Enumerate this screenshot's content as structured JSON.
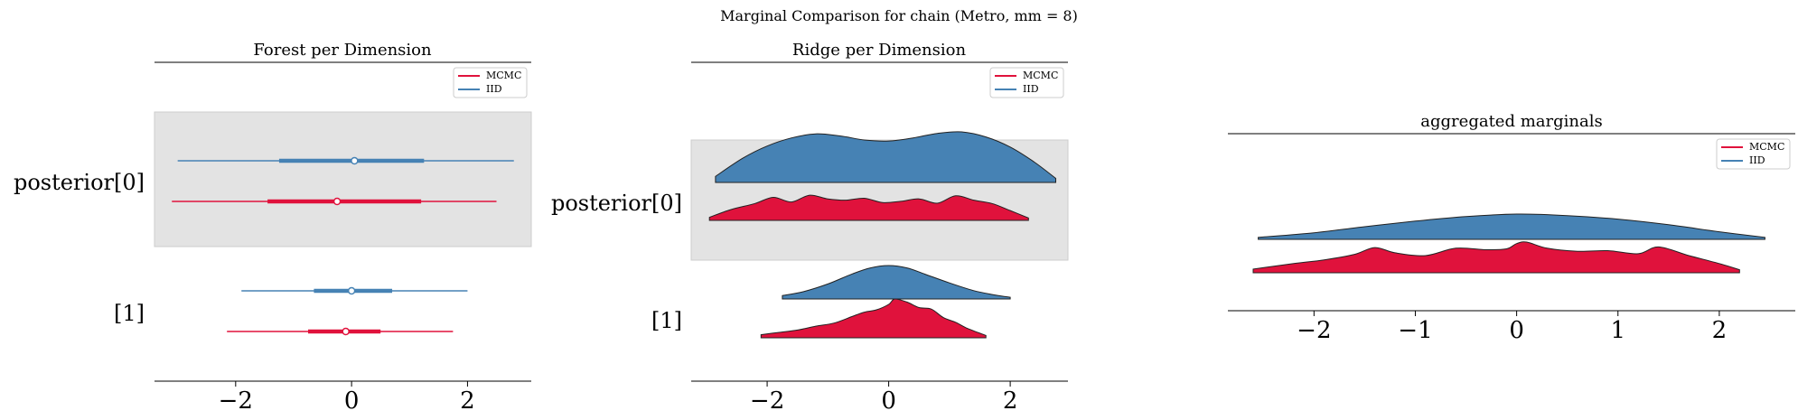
{
  "figure": {
    "suptitle": "Marginal Comparison for chain (Metro, mm = 8)"
  },
  "colors": {
    "mcmc": "#e0123c",
    "iid": "#4682b4",
    "shade": "#e3e3e3",
    "edge": "#222222"
  },
  "legend": {
    "entries": [
      "MCMC",
      "IID"
    ]
  },
  "chart_data": [
    {
      "type": "forest",
      "title": "Forest per Dimension",
      "xlim": [
        -3.4,
        3.1
      ],
      "xticks": [
        -2,
        0,
        2
      ],
      "tick_labels": [
        "−2",
        "0",
        "2"
      ],
      "legend_position": "top-right",
      "row_labels": [
        "posterior[0]",
        "[1]"
      ],
      "series": [
        {
          "name": "IID",
          "color_key": "iid",
          "rows": [
            {
              "row": 0,
              "hdi": [
                -3.0,
                2.8
              ],
              "iqr": [
                -1.25,
                1.25
              ],
              "median": 0.05
            },
            {
              "row": 1,
              "hdi": [
                -1.9,
                2.0
              ],
              "iqr": [
                -0.65,
                0.7
              ],
              "median": 0.0
            }
          ]
        },
        {
          "name": "MCMC",
          "color_key": "mcmc",
          "rows": [
            {
              "row": 0,
              "hdi": [
                -3.1,
                2.5
              ],
              "iqr": [
                -1.45,
                1.2
              ],
              "median": -0.25
            },
            {
              "row": 1,
              "hdi": [
                -2.15,
                1.75
              ],
              "iqr": [
                -0.75,
                0.5
              ],
              "median": -0.1
            }
          ]
        }
      ]
    },
    {
      "type": "ridge",
      "title": "Ridge per Dimension",
      "xlim": [
        -3.25,
        2.95
      ],
      "xticks": [
        -2,
        0,
        2
      ],
      "tick_labels": [
        "−2",
        "0",
        "2"
      ],
      "legend_position": "top-right",
      "row_labels": [
        "posterior[0]",
        "[1]"
      ],
      "series": [
        {
          "name": "IID",
          "color_key": "iid",
          "rows": [
            {
              "row": 0,
              "x": [
                -2.85,
                -2.4,
                -2.0,
                -1.6,
                -1.2,
                -0.8,
                -0.4,
                0.0,
                0.4,
                0.8,
                1.2,
                1.6,
                2.0,
                2.4,
                2.75
              ],
              "density": [
                0.12,
                0.48,
                0.72,
                0.88,
                0.96,
                0.92,
                0.84,
                0.82,
                0.88,
                0.97,
                1.0,
                0.9,
                0.7,
                0.4,
                0.08
              ]
            },
            {
              "row": 1,
              "x": [
                -1.75,
                -1.4,
                -1.0,
                -0.6,
                -0.3,
                0.0,
                0.3,
                0.6,
                1.0,
                1.4,
                1.75,
                2.0
              ],
              "density": [
                0.1,
                0.22,
                0.45,
                0.75,
                0.93,
                1.0,
                0.93,
                0.74,
                0.48,
                0.25,
                0.12,
                0.05
              ]
            }
          ]
        },
        {
          "name": "MCMC",
          "color_key": "mcmc",
          "rows": [
            {
              "row": 0,
              "x": [
                -2.95,
                -2.6,
                -2.2,
                -1.9,
                -1.6,
                -1.3,
                -1.0,
                -0.7,
                -0.4,
                -0.1,
                0.2,
                0.5,
                0.8,
                1.1,
                1.4,
                1.7,
                2.0,
                2.3
              ],
              "density": [
                0.1,
                0.35,
                0.55,
                0.75,
                0.6,
                0.82,
                0.7,
                0.66,
                0.72,
                0.58,
                0.62,
                0.7,
                0.56,
                0.8,
                0.66,
                0.55,
                0.32,
                0.08
              ]
            },
            {
              "row": 1,
              "x": [
                -2.1,
                -1.8,
                -1.5,
                -1.2,
                -0.9,
                -0.6,
                -0.4,
                -0.2,
                0.0,
                0.1,
                0.3,
                0.5,
                0.7,
                0.9,
                1.1,
                1.3,
                1.6
              ],
              "density": [
                0.08,
                0.14,
                0.2,
                0.3,
                0.38,
                0.55,
                0.66,
                0.72,
                0.86,
                1.0,
                0.92,
                0.78,
                0.74,
                0.52,
                0.4,
                0.24,
                0.06
              ]
            }
          ]
        }
      ]
    },
    {
      "type": "ridge",
      "title": "aggregated marginals",
      "xlim": [
        -2.85,
        2.75
      ],
      "xticks": [
        -2,
        -1,
        0,
        1,
        2
      ],
      "tick_labels": [
        "−2",
        "−1",
        "0",
        "1",
        "2"
      ],
      "legend_position": "top-right",
      "row_labels": [],
      "series": [
        {
          "name": "IID",
          "color_key": "iid",
          "rows": [
            {
              "row": 0,
              "x": [
                -2.55,
                -2.0,
                -1.5,
                -1.0,
                -0.5,
                0.0,
                0.5,
                1.0,
                1.5,
                2.0,
                2.45
              ],
              "density": [
                0.08,
                0.26,
                0.5,
                0.72,
                0.9,
                1.0,
                0.94,
                0.8,
                0.58,
                0.3,
                0.08
              ]
            }
          ]
        },
        {
          "name": "MCMC",
          "color_key": "mcmc",
          "rows": [
            {
              "row": 0,
              "x": [
                -2.6,
                -2.2,
                -1.9,
                -1.6,
                -1.4,
                -1.2,
                -0.9,
                -0.6,
                -0.3,
                -0.1,
                0.0,
                0.1,
                0.3,
                0.6,
                0.9,
                1.2,
                1.4,
                1.7,
                2.0,
                2.2
              ],
              "density": [
                0.12,
                0.3,
                0.42,
                0.6,
                0.82,
                0.65,
                0.56,
                0.8,
                0.75,
                0.78,
                0.95,
                1.0,
                0.8,
                0.7,
                0.72,
                0.62,
                0.84,
                0.56,
                0.3,
                0.1
              ]
            }
          ]
        }
      ]
    }
  ]
}
